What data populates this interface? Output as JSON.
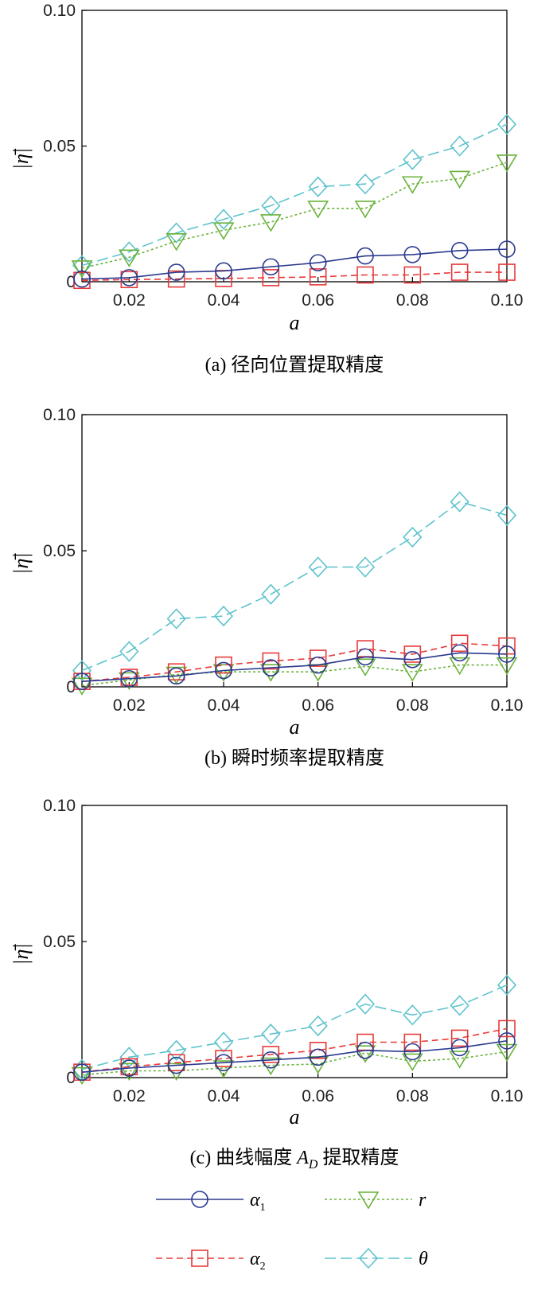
{
  "chart_data": [
    {
      "type": "line",
      "caption": "(a) 径向位置提取精度",
      "xlabel": "a",
      "ylabel": "|η̄|",
      "x": [
        0.01,
        0.02,
        0.03,
        0.04,
        0.05,
        0.06,
        0.07,
        0.08,
        0.09,
        0.1
      ],
      "xlim": [
        0.01,
        0.1
      ],
      "ylim": [
        0,
        0.1
      ],
      "xticks": [
        "0.02",
        "0.04",
        "0.06",
        "0.08",
        "0.10"
      ],
      "yticks": [
        "0",
        "0.05",
        "0.10"
      ],
      "series": [
        {
          "key": "alpha1",
          "values": [
            0.001,
            0.0015,
            0.0035,
            0.004,
            0.0055,
            0.007,
            0.0095,
            0.01,
            0.0115,
            0.012
          ]
        },
        {
          "key": "alpha2",
          "values": [
            0.0005,
            0.0008,
            0.001,
            0.0012,
            0.0015,
            0.0018,
            0.0025,
            0.0025,
            0.0035,
            0.0035
          ]
        },
        {
          "key": "r",
          "values": [
            0.005,
            0.009,
            0.015,
            0.019,
            0.022,
            0.027,
            0.027,
            0.036,
            0.038,
            0.044
          ]
        },
        {
          "key": "theta",
          "values": [
            0.006,
            0.011,
            0.018,
            0.023,
            0.028,
            0.035,
            0.036,
            0.045,
            0.05,
            0.058
          ]
        }
      ]
    },
    {
      "type": "line",
      "caption": "(b) 瞬时频率提取精度",
      "xlabel": "a",
      "ylabel": "|η̄|",
      "x": [
        0.01,
        0.02,
        0.03,
        0.04,
        0.05,
        0.06,
        0.07,
        0.08,
        0.09,
        0.1
      ],
      "xlim": [
        0.01,
        0.1
      ],
      "ylim": [
        0,
        0.1
      ],
      "xticks": [
        "0.02",
        "0.04",
        "0.06",
        "0.08",
        "0.10"
      ],
      "yticks": [
        "0",
        "0.05",
        "0.10"
      ],
      "series": [
        {
          "key": "alpha1",
          "values": [
            0.002,
            0.003,
            0.004,
            0.006,
            0.007,
            0.008,
            0.011,
            0.01,
            0.0125,
            0.012
          ]
        },
        {
          "key": "alpha2",
          "values": [
            0.002,
            0.0035,
            0.0055,
            0.008,
            0.0095,
            0.0105,
            0.014,
            0.012,
            0.016,
            0.015
          ]
        },
        {
          "key": "r",
          "values": [
            0.0005,
            0.0025,
            0.0045,
            0.0055,
            0.0055,
            0.0055,
            0.0075,
            0.0055,
            0.008,
            0.008
          ]
        },
        {
          "key": "theta",
          "values": [
            0.006,
            0.013,
            0.025,
            0.026,
            0.034,
            0.044,
            0.044,
            0.055,
            0.068,
            0.063
          ]
        }
      ]
    },
    {
      "type": "line",
      "caption": "(c) 曲线幅度 A_D 提取精度",
      "xlabel": "a",
      "ylabel": "|η̄|",
      "x": [
        0.01,
        0.02,
        0.03,
        0.04,
        0.05,
        0.06,
        0.07,
        0.08,
        0.09,
        0.1
      ],
      "xlim": [
        0.01,
        0.1
      ],
      "ylim": [
        0,
        0.1
      ],
      "xticks": [
        "0.02",
        "0.04",
        "0.06",
        "0.08",
        "0.10"
      ],
      "yticks": [
        "0",
        "0.05",
        "0.10"
      ],
      "series": [
        {
          "key": "alpha1",
          "values": [
            0.002,
            0.0035,
            0.0045,
            0.0055,
            0.0065,
            0.0075,
            0.01,
            0.0095,
            0.011,
            0.0135
          ]
        },
        {
          "key": "alpha2",
          "values": [
            0.002,
            0.004,
            0.0055,
            0.007,
            0.0085,
            0.01,
            0.013,
            0.013,
            0.0145,
            0.018
          ]
        },
        {
          "key": "r",
          "values": [
            0.001,
            0.0025,
            0.0025,
            0.0035,
            0.0045,
            0.005,
            0.009,
            0.006,
            0.007,
            0.0095
          ]
        },
        {
          "key": "theta",
          "values": [
            0.003,
            0.0075,
            0.01,
            0.013,
            0.016,
            0.019,
            0.027,
            0.023,
            0.0265,
            0.034
          ]
        }
      ]
    }
  ],
  "legend": [
    {
      "key": "alpha1",
      "label": "α",
      "sub": "1",
      "color": "#2a3a8f",
      "dash": "",
      "marker": "circle"
    },
    {
      "key": "alpha2",
      "label": "α",
      "sub": "2",
      "color": "#e83a3a",
      "dash": "8,5",
      "marker": "square"
    },
    {
      "key": "r",
      "label": "r",
      "sub": "",
      "color": "#6ab23a",
      "dash": "3,3",
      "marker": "triangle"
    },
    {
      "key": "theta",
      "label": "θ",
      "sub": "",
      "color": "#5ec3cc",
      "dash": "14,6",
      "marker": "diamond"
    }
  ]
}
